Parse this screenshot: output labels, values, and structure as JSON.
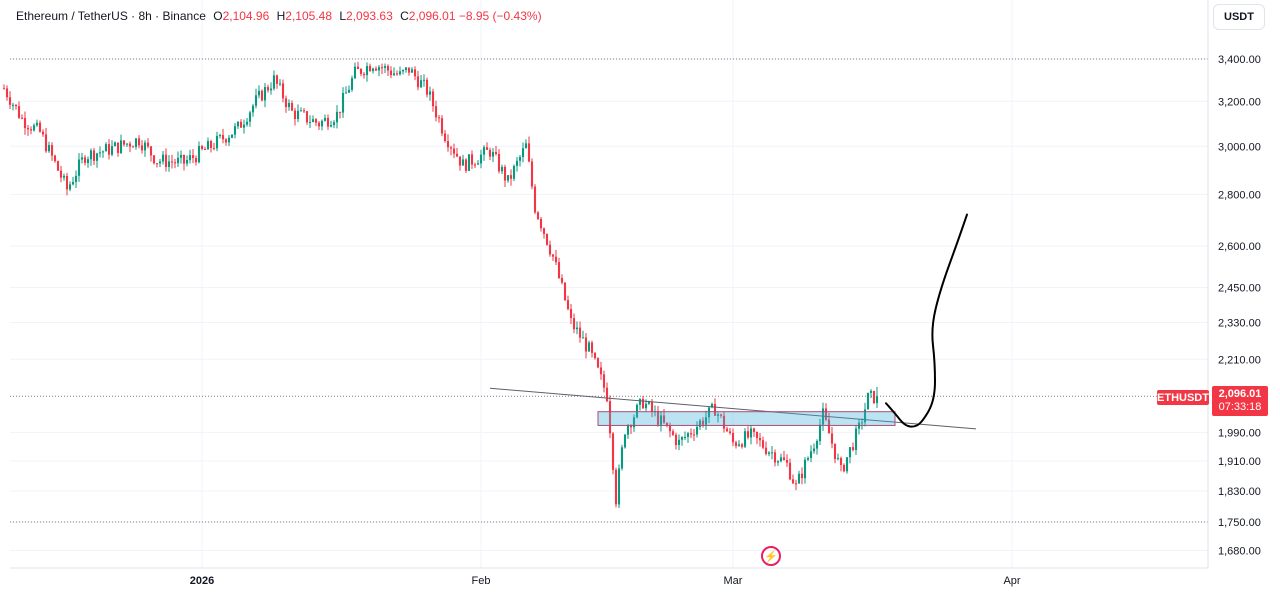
{
  "legend": {
    "symbol": "Ethereum / TetherUS · 8h · Binance",
    "open_key": "O",
    "open_val": "2,104.96",
    "high_key": "H",
    "high_val": "2,105.48",
    "low_key": "L",
    "low_val": "2,093.63",
    "close_key": "C",
    "close_val": "2,096.01",
    "change": "−8.95 (−0.43%)"
  },
  "currency_button": "USDT",
  "price_tag": {
    "symbol": "ETHUSDT",
    "price": "2,096.01",
    "countdown": "07:33:18"
  },
  "icons": {
    "logo": "tradingview-flash-icon"
  },
  "colors": {
    "up": "#089981",
    "down": "#f23645",
    "grid": "#f0f3fa",
    "annotation": "#000000"
  },
  "chart_data": {
    "type": "candlestick",
    "title": "Ethereum / TetherUS · 8h · Binance",
    "y_ticks": [
      "3,400.00",
      "3,200.00",
      "3,000.00",
      "2,800.00",
      "2,600.00",
      "2,450.00",
      "2,330.00",
      "2,210.00",
      "1,990.00",
      "1,910.00",
      "1,830.00",
      "1,750.00",
      "1,680.00"
    ],
    "y_tick_values": [
      3400,
      3200,
      3000,
      2800,
      2600,
      2450,
      2330,
      2210,
      1990,
      1910,
      1830,
      1750,
      1680
    ],
    "x_ticks": [
      {
        "label": "2026",
        "date": "2026-01-01"
      },
      {
        "label": "Feb",
        "date": "2026-02-01"
      },
      {
        "label": "Mar",
        "date": "2026-03-01"
      },
      {
        "label": "Apr",
        "date": "2026-04-01"
      }
    ],
    "scale": "log",
    "ylim": [
      1620,
      3480
    ],
    "x_range": [
      "2025-12-10",
      "2026-04-14"
    ],
    "last_price": 2096.01,
    "reference_lines": [
      3400,
      2096.01,
      1750
    ],
    "candle_interval": "8h",
    "close_path": [
      {
        "date": "2025-12-10",
        "close": 3260
      },
      {
        "date": "2025-12-12",
        "close": 3120
      },
      {
        "date": "2025-12-14",
        "close": 3060
      },
      {
        "date": "2025-12-16",
        "close": 2900
      },
      {
        "date": "2025-12-17",
        "close": 2820
      },
      {
        "date": "2025-12-19",
        "close": 2960
      },
      {
        "date": "2025-12-22",
        "close": 2990
      },
      {
        "date": "2025-12-25",
        "close": 3030
      },
      {
        "date": "2025-12-27",
        "close": 2940
      },
      {
        "date": "2025-12-30",
        "close": 2930
      },
      {
        "date": "2026-01-02",
        "close": 3000
      },
      {
        "date": "2026-01-05",
        "close": 3080
      },
      {
        "date": "2026-01-07",
        "close": 3200
      },
      {
        "date": "2026-01-09",
        "close": 3300
      },
      {
        "date": "2026-01-11",
        "close": 3150
      },
      {
        "date": "2026-01-14",
        "close": 3100
      },
      {
        "date": "2026-01-16",
        "close": 3140
      },
      {
        "date": "2026-01-18",
        "close": 3330
      },
      {
        "date": "2026-01-20",
        "close": 3380
      },
      {
        "date": "2026-01-23",
        "close": 3320
      },
      {
        "date": "2026-01-24",
        "close": 3350
      },
      {
        "date": "2026-01-26",
        "close": 3250
      },
      {
        "date": "2026-01-28",
        "close": 3050
      },
      {
        "date": "2026-01-30",
        "close": 2920
      },
      {
        "date": "2026-02-02",
        "close": 2980
      },
      {
        "date": "2026-02-04",
        "close": 2850
      },
      {
        "date": "2026-02-06",
        "close": 3000
      },
      {
        "date": "2026-02-07",
        "close": 2750
      },
      {
        "date": "2026-02-09",
        "close": 2560
      },
      {
        "date": "2026-02-11",
        "close": 2330
      },
      {
        "date": "2026-02-13",
        "close": 2240
      },
      {
        "date": "2026-02-15",
        "close": 2100
      },
      {
        "date": "2026-02-16",
        "close": 1810
      },
      {
        "date": "2026-02-17",
        "close": 2000
      },
      {
        "date": "2026-02-19",
        "close": 2080
      },
      {
        "date": "2026-02-21",
        "close": 2020
      },
      {
        "date": "2026-02-23",
        "close": 1960
      },
      {
        "date": "2026-02-25",
        "close": 2010
      },
      {
        "date": "2026-02-27",
        "close": 2060
      },
      {
        "date": "2026-03-01",
        "close": 1960
      },
      {
        "date": "2026-03-03",
        "close": 1980
      },
      {
        "date": "2026-03-05",
        "close": 1940
      },
      {
        "date": "2026-03-07",
        "close": 1900
      },
      {
        "date": "2026-03-08",
        "close": 1840
      },
      {
        "date": "2026-03-10",
        "close": 1960
      },
      {
        "date": "2026-03-11",
        "close": 2040
      },
      {
        "date": "2026-03-13",
        "close": 1880
      },
      {
        "date": "2026-03-15",
        "close": 2000
      },
      {
        "date": "2026-03-16",
        "close": 2090
      },
      {
        "date": "2026-03-17",
        "close": 2096
      }
    ],
    "annotations": [
      {
        "type": "trendline",
        "points": [
          {
            "date": "2026-02-02",
            "price": 2120
          },
          {
            "date": "2026-03-28",
            "price": 2000
          }
        ]
      },
      {
        "type": "rectangle",
        "from": "2026-02-14",
        "to": "2026-03-19",
        "low": 2010,
        "high": 2050
      },
      {
        "type": "freehand",
        "points": [
          {
            "date": "2026-03-18",
            "price": 2075
          },
          {
            "date": "2026-03-19",
            "price": 2045
          },
          {
            "date": "2026-03-20",
            "price": 2012
          },
          {
            "date": "2026-03-21",
            "price": 2004
          },
          {
            "date": "2026-03-22",
            "price": 2018
          },
          {
            "date": "2026-03-23",
            "price": 2085
          },
          {
            "date": "2026-03-23",
            "price": 2200
          },
          {
            "date": "2026-03-23",
            "price": 2310
          },
          {
            "date": "2026-03-24",
            "price": 2440
          },
          {
            "date": "2026-03-26",
            "price": 2620
          },
          {
            "date": "2026-03-27",
            "price": 2720
          }
        ]
      }
    ]
  }
}
